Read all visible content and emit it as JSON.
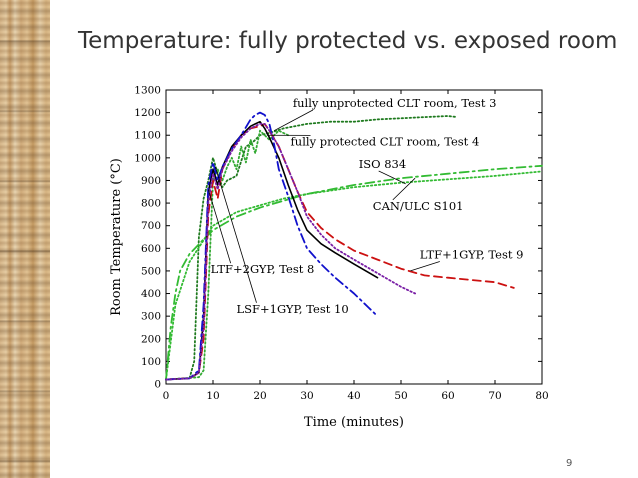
{
  "slide": {
    "title": "Temperature: fully protected vs. exposed room",
    "page_number": "9"
  },
  "chart_data": {
    "type": "line",
    "xlabel": "Time (minutes)",
    "ylabel": "Room Temperature (°C)",
    "xlim": [
      0,
      80
    ],
    "ylim": [
      0,
      1300
    ],
    "xticks": [
      0,
      10,
      20,
      30,
      40,
      50,
      60,
      70,
      80
    ],
    "yticks": [
      0,
      100,
      200,
      300,
      400,
      500,
      600,
      700,
      800,
      900,
      1000,
      1100,
      1200,
      1300
    ],
    "grid": false,
    "series": [
      {
        "name": "fully unprotected CLT room, Test 3",
        "color": "#1f7a1f",
        "style": "dotted",
        "x": [
          0,
          5,
          6,
          7,
          8,
          9,
          10,
          11,
          12,
          13,
          15,
          17,
          18,
          19,
          20,
          22,
          25,
          30,
          35,
          40,
          45,
          50,
          55,
          60,
          62
        ],
        "y": [
          20,
          25,
          100,
          650,
          820,
          900,
          1000,
          930,
          870,
          900,
          920,
          1050,
          1060,
          1080,
          1100,
          1110,
          1130,
          1150,
          1160,
          1160,
          1170,
          1175,
          1180,
          1185,
          1180
        ]
      },
      {
        "name": "fully protected CLT room, Test 4",
        "color": "#33aa33",
        "style": "dotted",
        "x": [
          0,
          7,
          8,
          9,
          10,
          11,
          12,
          13,
          14,
          15,
          16,
          17,
          18,
          19,
          20,
          21,
          22,
          23,
          24,
          25,
          26
        ],
        "y": [
          20,
          30,
          60,
          400,
          900,
          950,
          900,
          960,
          1000,
          950,
          1050,
          980,
          1080,
          1020,
          1120,
          1100,
          1080,
          1100,
          1120,
          1110,
          1100
        ]
      },
      {
        "name": "ISO 834",
        "color": "#33bb33",
        "style": "dashdot",
        "x": [
          0,
          1,
          2,
          3,
          5,
          8,
          10,
          15,
          20,
          25,
          30,
          40,
          50,
          60,
          70,
          80
        ],
        "y": [
          20,
          250,
          400,
          500,
          575,
          640,
          680,
          740,
          780,
          810,
          840,
          880,
          910,
          930,
          950,
          965
        ]
      },
      {
        "name": "CAN/ULC S101",
        "color": "#33bb33",
        "style": "dotted",
        "x": [
          0,
          2,
          5,
          10,
          15,
          20,
          25,
          30,
          40,
          50,
          60,
          70,
          80
        ],
        "y": [
          20,
          350,
          540,
          700,
          760,
          790,
          820,
          840,
          870,
          890,
          905,
          920,
          940
        ]
      },
      {
        "name": "LTF+1GYP, Test 9",
        "color": "#cc1111",
        "style": "dashed",
        "x": [
          0,
          5,
          7,
          8,
          9,
          10,
          11,
          12,
          14,
          16,
          18,
          20,
          21,
          22,
          24,
          26,
          28,
          30,
          33,
          36,
          40,
          45,
          50,
          55,
          60,
          65,
          70,
          74
        ],
        "y": [
          20,
          25,
          50,
          200,
          750,
          900,
          820,
          950,
          1040,
          1100,
          1130,
          1140,
          1150,
          1120,
          1050,
          950,
          850,
          760,
          690,
          640,
          590,
          550,
          510,
          480,
          470,
          460,
          450,
          425
        ]
      },
      {
        "name": "LTF+2GYP, Test 8",
        "color": "#000000",
        "style": "solid",
        "x": [
          0,
          5,
          7,
          8,
          9,
          10,
          11,
          12,
          14,
          16,
          18,
          19,
          20,
          21,
          22,
          24,
          26,
          28,
          30,
          33,
          36,
          40,
          45
        ],
        "y": [
          20,
          25,
          50,
          300,
          850,
          950,
          880,
          960,
          1050,
          1100,
          1140,
          1150,
          1160,
          1130,
          1090,
          1000,
          880,
          770,
          680,
          620,
          580,
          530,
          470
        ]
      },
      {
        "name": "LSF+1GYP, Test 10",
        "color": "#1111cc",
        "style": "dashdot",
        "x": [
          0,
          5,
          7,
          8,
          9,
          10,
          11,
          12,
          14,
          16,
          18,
          19,
          20,
          21,
          22,
          23,
          24,
          26,
          28,
          30,
          33,
          36,
          40,
          43,
          45
        ],
        "y": [
          20,
          25,
          60,
          350,
          880,
          980,
          900,
          960,
          1040,
          1100,
          1170,
          1190,
          1200,
          1190,
          1150,
          1060,
          950,
          830,
          700,
          600,
          530,
          470,
          400,
          340,
          300
        ]
      },
      {
        "name": "",
        "color": "#7a1fa6",
        "style": "dotted",
        "x": [
          0,
          5,
          7,
          8,
          9,
          10,
          11,
          12,
          14,
          16,
          18,
          20,
          21,
          22,
          24,
          26,
          28,
          30,
          33,
          36,
          40,
          45,
          50,
          53
        ],
        "y": [
          20,
          25,
          50,
          250,
          800,
          930,
          860,
          950,
          1030,
          1090,
          1130,
          1150,
          1150,
          1120,
          1050,
          950,
          850,
          740,
          660,
          600,
          550,
          490,
          430,
          400
        ]
      }
    ],
    "annotations": [
      {
        "text": "fully unprotected CLT room, Test 3",
        "x": 27,
        "y": 1225,
        "arrow_to": [
          23,
          1120
        ]
      },
      {
        "text": "fully protected CLT room, Test 4",
        "x": 26.5,
        "y": 1055,
        "arrow_to": [
          21.5,
          1100
        ]
      },
      {
        "text": "ISO 834",
        "x": 41,
        "y": 955,
        "arrow_to": [
          51,
          885
        ]
      },
      {
        "text": "CAN/ULC S101",
        "x": 44,
        "y": 770,
        "arrow_to": [
          53,
          910
        ]
      },
      {
        "text": "LTF+1GYP, Test 9",
        "x": 54,
        "y": 555,
        "arrow_to": [
          52,
          500
        ]
      },
      {
        "text": "LTF+2GYP, Test 8",
        "x": 9.5,
        "y": 490,
        "arrow_to": [
          9,
          860
        ]
      },
      {
        "text": "LSF+1GYP, Test 10",
        "x": 15,
        "y": 315,
        "arrow_to": [
          10.5,
          960
        ]
      }
    ]
  }
}
